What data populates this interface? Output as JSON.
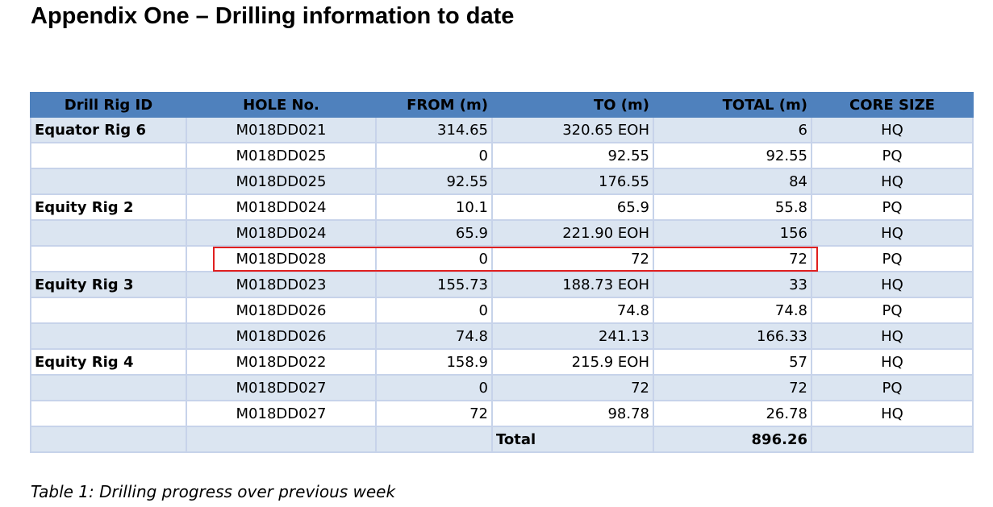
{
  "title": "Appendix One – Drilling information to date",
  "table": {
    "headers": [
      "Drill Rig ID",
      "HOLE No.",
      "FROM (m)",
      "TO (m)",
      "TOTAL (m)",
      "CORE SIZE"
    ],
    "rows": [
      {
        "rig": "Equator Rig 6",
        "hole": "M018DD021",
        "from": "314.65",
        "to": "320.65 EOH",
        "total": "6",
        "core": "HQ"
      },
      {
        "rig": "",
        "hole": "M018DD025",
        "from": "0",
        "to": "92.55",
        "total": "92.55",
        "core": "PQ"
      },
      {
        "rig": "",
        "hole": "M018DD025",
        "from": "92.55",
        "to": "176.55",
        "total": "84",
        "core": "HQ"
      },
      {
        "rig": "Equity Rig 2",
        "hole": "M018DD024",
        "from": "10.1",
        "to": "65.9",
        "total": "55.8",
        "core": "PQ"
      },
      {
        "rig": "",
        "hole": "M018DD024",
        "from": "65.9",
        "to": "221.90 EOH",
        "total": "156",
        "core": "HQ"
      },
      {
        "rig": "",
        "hole": "M018DD028",
        "from": "0",
        "to": "72",
        "total": "72",
        "core": "PQ"
      },
      {
        "rig": "Equity Rig 3",
        "hole": "M018DD023",
        "from": "155.73",
        "to": "188.73 EOH",
        "total": "33",
        "core": "HQ"
      },
      {
        "rig": "",
        "hole": "M018DD026",
        "from": "0",
        "to": "74.8",
        "total": "74.8",
        "core": "PQ"
      },
      {
        "rig": "",
        "hole": "M018DD026",
        "from": "74.8",
        "to": "241.13",
        "total": "166.33",
        "core": "HQ"
      },
      {
        "rig": "Equity Rig 4",
        "hole": "M018DD022",
        "from": "158.9",
        "to": "215.9 EOH",
        "total": "57",
        "core": "HQ"
      },
      {
        "rig": "",
        "hole": "M018DD027",
        "from": "0",
        "to": "72",
        "total": "72",
        "core": "PQ"
      },
      {
        "rig": "",
        "hole": "M018DD027",
        "from": "72",
        "to": "98.78",
        "total": "26.78",
        "core": "HQ"
      }
    ],
    "total_label": "Total",
    "total_value": "896.26"
  },
  "caption": "Table 1: Drilling progress over previous week",
  "colors": {
    "header_bg": "#4f81bd",
    "shaded_row": "#dbe5f1",
    "highlight": "#e02020"
  }
}
